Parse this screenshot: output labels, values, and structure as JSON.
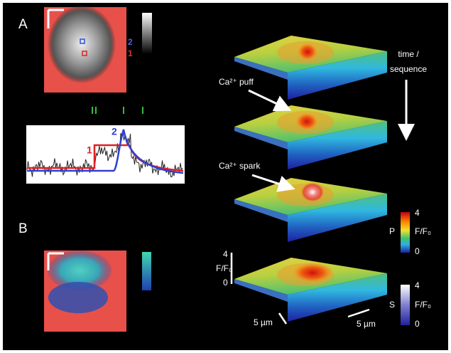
{
  "panel_a": {
    "label": "A",
    "roi_labels": [
      "2",
      "1"
    ],
    "trace_labels": [
      "1",
      "2"
    ]
  },
  "panel_b": {
    "label": "B"
  },
  "annotations": {
    "time": "time /",
    "sequence": "sequence",
    "puff": "Ca²⁺ puff",
    "spark": "Ca²⁺ spark"
  },
  "colorbar_p": {
    "name": "P",
    "max": 4,
    "unit": "F/F₀",
    "min": 0
  },
  "colorbar_s": {
    "name": "S",
    "max": 4,
    "unit": "F/F₀",
    "min": 0
  },
  "scale": {
    "unit": "F/F₀",
    "max": 4,
    "min": 0,
    "x": "5 µm",
    "y": "5 µm"
  }
}
